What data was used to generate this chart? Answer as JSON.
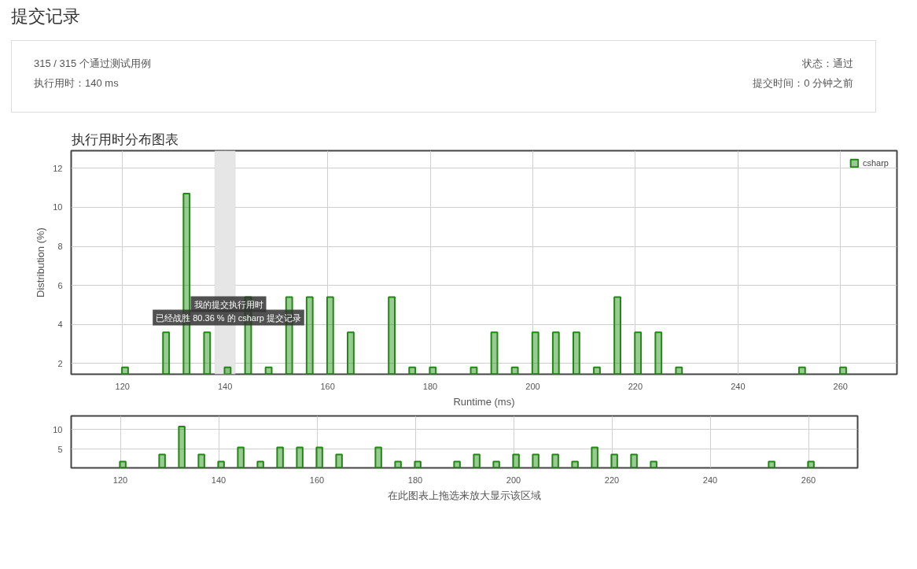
{
  "chart_data": [
    {
      "type": "other",
      "title": "提交记录",
      "annotations": [
        "315 / 315 个通过测试用例",
        "状态：通过",
        "执行用时：140 ms",
        "提交时间：0 分钟之前"
      ]
    },
    {
      "type": "bar",
      "title": "执行用时分布图表",
      "xlabel": "Runtime (ms)",
      "ylabel": "Distribution (%)",
      "x": [
        120.5,
        128.5,
        132.5,
        136.5,
        140.5,
        144.5,
        148.5,
        152.5,
        156.5,
        160.5,
        164.5,
        172.5,
        176.5,
        180.5,
        188.5,
        192.5,
        196.5,
        200.5,
        204.5,
        208.5,
        212.5,
        216.5,
        220.5,
        224.5,
        228.5,
        252.5,
        260.5
      ],
      "series": [
        {
          "name": "csharp",
          "color": "#1f8a10",
          "values": [
            1.8,
            3.6,
            10.7,
            3.6,
            1.8,
            5.4,
            1.8,
            5.4,
            5.4,
            5.4,
            3.6,
            5.4,
            1.8,
            1.8,
            1.8,
            3.6,
            1.8,
            3.6,
            3.6,
            3.6,
            1.8,
            5.4,
            3.6,
            3.6,
            1.8,
            1.8,
            1.8
          ]
        }
      ],
      "xlim": [
        110,
        271
      ],
      "ylim": [
        1.45,
        12.9
      ],
      "xticks": [
        120,
        140,
        160,
        180,
        200,
        220,
        240,
        260
      ],
      "yticks": [
        2,
        4,
        6,
        8,
        10,
        12
      ],
      "bands": [
        {
          "axis": "x",
          "from": 138,
          "to": 142,
          "color": "#e6e6e6"
        }
      ],
      "annotations": [
        "我的提交执行用时",
        "已经战胜 80.36 % 的 csharp 提交记录"
      ],
      "grid": true,
      "legend": "top right"
    },
    {
      "type": "bar",
      "xlabel": "在此图表上拖选来放大显示该区域",
      "x": [
        120.5,
        128.5,
        132.5,
        136.5,
        140.5,
        144.5,
        148.5,
        152.5,
        156.5,
        160.5,
        164.5,
        172.5,
        176.5,
        180.5,
        188.5,
        192.5,
        196.5,
        200.5,
        204.5,
        208.5,
        212.5,
        216.5,
        220.5,
        224.5,
        228.5,
        252.5,
        260.5
      ],
      "series": [
        {
          "color": "#1f8a10",
          "values": [
            1.8,
            3.6,
            10.7,
            3.6,
            1.8,
            5.4,
            1.8,
            5.4,
            5.4,
            5.4,
            3.6,
            5.4,
            1.8,
            1.8,
            1.8,
            3.6,
            1.8,
            3.6,
            3.6,
            3.6,
            1.8,
            5.4,
            3.6,
            3.6,
            1.8,
            1.8,
            1.8
          ]
        }
      ],
      "xlim": [
        110,
        270
      ],
      "ylim": [
        0.2,
        13.4
      ],
      "xticks": [
        120,
        140,
        160,
        180,
        200,
        220,
        240,
        260
      ],
      "yticks": [
        5,
        10
      ],
      "grid": true
    }
  ]
}
